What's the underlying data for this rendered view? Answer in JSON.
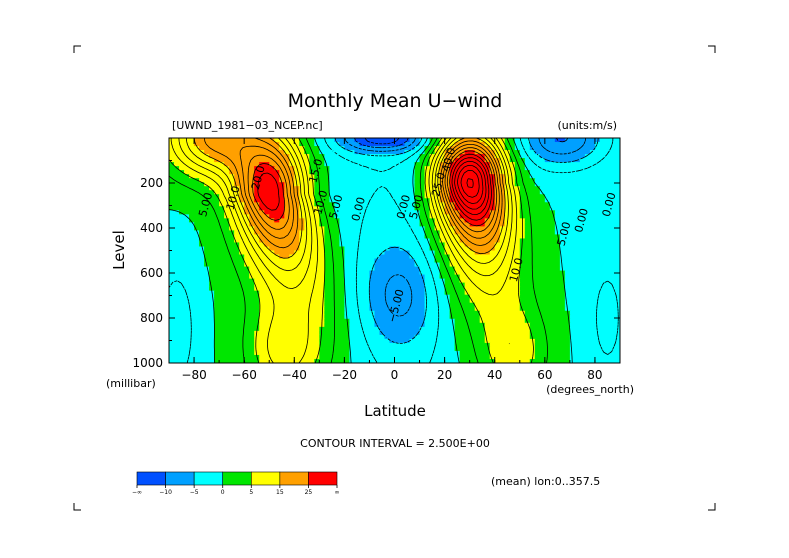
{
  "chart_data": {
    "type": "heatmap",
    "title": "Monthly Mean U−wind",
    "dataset_label": "[UWND_1981−03_NCEP.nc]",
    "units_label": "(units:m/s)",
    "xlabel": "Latitude",
    "x_units": "(degrees_north)",
    "ylabel": "Level",
    "y_units": "(millibar)",
    "xlim": [
      -90,
      90
    ],
    "ylim": [
      1000,
      0
    ],
    "x_ticks": [
      "−80",
      "−60",
      "−40",
      "−20",
      "0",
      "20",
      "40",
      "60",
      "80"
    ],
    "x_tick_values": [
      -80,
      -60,
      -40,
      -20,
      0,
      20,
      40,
      60,
      80
    ],
    "y_ticks": [
      "200",
      "400",
      "600",
      "800",
      "1000"
    ],
    "y_tick_values": [
      200,
      400,
      600,
      800,
      1000
    ],
    "contour_interval_text": "CONTOUR INTERVAL = 2.500E+00",
    "mean_text": "(mean) lon:0..357.5",
    "jets": [
      {
        "lat": -50,
        "level": 250,
        "peak": 30
      },
      {
        "lat": 30,
        "level": 200,
        "peak": 42
      }
    ],
    "contour_labels": [
      {
        "text": "20.0",
        "lat": -53,
        "level": 180
      },
      {
        "text": "15.0",
        "lat": -30,
        "level": 150
      },
      {
        "text": "10.0",
        "lat": -63,
        "level": 270
      },
      {
        "text": "10.0",
        "lat": -28,
        "level": 290
      },
      {
        "text": "5.00",
        "lat": -74,
        "level": 300
      },
      {
        "text": "5.00",
        "lat": -22,
        "level": 310
      },
      {
        "text": "0.00",
        "lat": -13,
        "level": 320
      },
      {
        "text": "0.00",
        "lat": 5,
        "level": 310
      },
      {
        "text": "5.00",
        "lat": 10,
        "level": 310
      },
      {
        "text": "25.0",
        "lat": 19,
        "level": 210
      },
      {
        "text": "40.0",
        "lat": 23,
        "level": 100
      },
      {
        "text": "10.0",
        "lat": 50,
        "level": 590
      },
      {
        "text": "5.00",
        "lat": 69,
        "level": 430
      },
      {
        "text": "0.00",
        "lat": 76,
        "level": 370
      },
      {
        "text": "0.00",
        "lat": 87,
        "level": 300
      },
      {
        "text": "−5.00",
        "lat": 2,
        "level": 750
      }
    ],
    "colorbar": {
      "colors": [
        "#0050ff",
        "#00a0ff",
        "#00ffff",
        "#00e600",
        "#ffff00",
        "#ffa000",
        "#ff0000"
      ],
      "labels": [
        "−∞",
        "−10",
        "−5",
        "0",
        "5",
        "15",
        "25",
        "∞"
      ]
    }
  }
}
